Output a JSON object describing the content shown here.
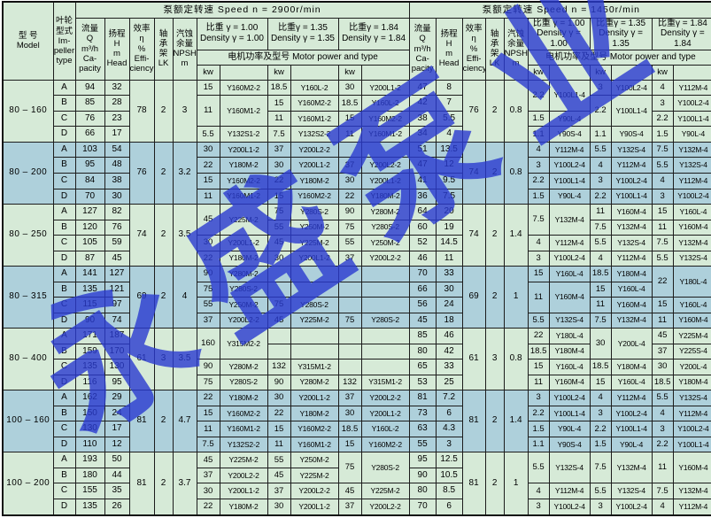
{
  "colors": {
    "block_green": "#d6ead7",
    "block_blue": "#aed0db",
    "watermark_blue": "#2a3bd0"
  },
  "watermark": {
    "text": "永盛泵业"
  },
  "header": {
    "model": "型  号\nModel",
    "impeller": "叶轮\n型式\nIm-\npeller\ntype",
    "speed_2900": "泵额定转速  Speed  n = 2900r/min",
    "speed_1450": "泵额定转速  Speed  n = 1450r/min",
    "flow": "流量\nQ\nm³/h\nCa-\npacity",
    "head": "扬程\nH\nm\nHead",
    "efficiency": "效率\nη\n%\nEffi-\nciency",
    "bearing": "轴\n承\n架\nLK",
    "npsh": "汽蚀\n余量\nNPSH\nm",
    "density_100": "比重 γ = 1.00\nDensity γ = 1.00",
    "density_135": "比重γ = 1.35\nDensity γ = 1.35",
    "density_184": "比重γ = 1.84\nDensity γ = 1.84",
    "motor_power": "电机功率及型号  Motor power and type",
    "kw": "kw"
  },
  "table": {
    "blocks": [
      {
        "model": "80 – 160",
        "tone": "green",
        "s29": {
          "eff": "78",
          "lk": "2",
          "npsh": "3"
        },
        "s14": {
          "eff": "76",
          "lk": "2",
          "npsh": "0.8"
        },
        "rows": [
          {
            "i": "A",
            "q": "94",
            "h": "32",
            "a": [
              "15",
              "Y160M2-2",
              "18.5",
              "Y160L-2",
              "30",
              "Y200L1-2"
            ],
            "q2": "47",
            "h2": "8",
            "b": [
              [
                "2.2",
                2
              ],
              [
                "Y100L1-4",
                2
              ],
              "3",
              "Y100L2-4",
              "4",
              "Y112M-4"
            ]
          },
          {
            "i": "B",
            "q": "85",
            "h": "28",
            "a": [
              [
                "11",
                2
              ],
              [
                "Y160M1-2",
                2
              ],
              "15",
              "Y160M2-2",
              "18.5",
              "Y160L-2"
            ],
            "q2": "42",
            "h2": "7",
            "b": [
              null,
              null,
              [
                "2.2",
                2
              ],
              [
                "Y100L1-4",
                2
              ],
              "3",
              "Y100L2-4"
            ]
          },
          {
            "i": "C",
            "q": "76",
            "h": "23",
            "a": [
              null,
              null,
              "11",
              "Y160M1-2",
              "15",
              "Y160M2-2"
            ],
            "q2": "38",
            "h2": "5.5",
            "b": [
              "1.5",
              "Y90L-4",
              null,
              null,
              "2.2",
              "Y100L1-4"
            ]
          },
          {
            "i": "D",
            "q": "66",
            "h": "17",
            "a": [
              "5.5",
              "Y132S1-2",
              "7.5",
              "Y132S2-2",
              "11",
              "Y160M1-2"
            ],
            "q2": "34",
            "h2": "4",
            "b": [
              "1.1",
              "Y90S-4",
              "1.1",
              "Y90S-4",
              "1.5",
              "Y90L-4"
            ]
          }
        ]
      },
      {
        "model": "80 – 200",
        "tone": "blue",
        "s29": {
          "eff": "76",
          "lk": "2",
          "npsh": "3.2"
        },
        "s14": {
          "eff": "74",
          "lk": "2",
          "npsh": "0.8"
        },
        "rows": [
          {
            "i": "A",
            "q": "103",
            "h": "54",
            "a": [
              "30",
              "Y200L1-2",
              "37",
              "Y200L2-2",
              "",
              ""
            ],
            "q2": "51",
            "h2": "13.5",
            "b": [
              "4",
              "Y112M-4",
              "5.5",
              "Y132S-4",
              "7.5",
              "Y132M-4"
            ]
          },
          {
            "i": "B",
            "q": "95",
            "h": "48",
            "a": [
              "22",
              "Y180M-2",
              "30",
              "Y200L1-2",
              "37",
              "Y200L2-2"
            ],
            "q2": "47",
            "h2": "12",
            "b": [
              "3",
              "Y100L2-4",
              "4",
              "Y112M-4",
              "5.5",
              "Y132S-4"
            ]
          },
          {
            "i": "C",
            "q": "84",
            "h": "38",
            "a": [
              "15",
              "Y160M2-2",
              "22",
              "Y180M-2",
              "30",
              "Y200L1-2"
            ],
            "q2": "41",
            "h2": "9.5",
            "b": [
              "2.2",
              "Y100L1-4",
              "3",
              "Y100L2-4",
              "4",
              "Y112M-4"
            ]
          },
          {
            "i": "D",
            "q": "70",
            "h": "30",
            "a": [
              "11",
              "Y160M1-2",
              "15",
              "Y160M2-2",
              "22",
              "Y180M-2"
            ],
            "q2": "36",
            "h2": "7.5",
            "b": [
              "1.5",
              "Y90L-4",
              "2.2",
              "Y100L1-4",
              "3",
              "Y100L2-4"
            ]
          }
        ]
      },
      {
        "model": "80 – 250",
        "tone": "green",
        "s29": {
          "eff": "74",
          "lk": "2",
          "npsh": "3.5"
        },
        "s14": {
          "eff": "74",
          "lk": "2",
          "npsh": "1.4"
        },
        "rows": [
          {
            "i": "A",
            "q": "127",
            "h": "82",
            "a": [
              [
                "45",
                2
              ],
              [
                "Y225M-2",
                2
              ],
              "75",
              "Y280S-2",
              "90",
              "Y280M-2"
            ],
            "q2": "64",
            "h2": "20",
            "b": [
              [
                "7.5",
                2
              ],
              [
                "Y132M-4",
                2
              ],
              "11",
              "Y160M-4",
              "15",
              "Y160L-4"
            ]
          },
          {
            "i": "B",
            "q": "120",
            "h": "76",
            "a": [
              null,
              null,
              "55",
              "Y250M-2",
              "75",
              "Y280S-2"
            ],
            "q2": "60",
            "h2": "19",
            "b": [
              null,
              null,
              "7.5",
              "Y132M-4",
              "11",
              "Y160M-4"
            ]
          },
          {
            "i": "C",
            "q": "105",
            "h": "59",
            "a": [
              "30",
              "Y200L1-2",
              "45",
              "Y225M-2",
              "55",
              "Y250M-2"
            ],
            "q2": "52",
            "h2": "14.5",
            "b": [
              "4",
              "Y112M-4",
              "5.5",
              "Y132S-4",
              "7.5",
              "Y132M-4"
            ]
          },
          {
            "i": "D",
            "q": "87",
            "h": "45",
            "a": [
              "22",
              "Y180M-2",
              "30",
              "Y200L1-2",
              "37",
              "Y200L2-2"
            ],
            "q2": "46",
            "h2": "11",
            "b": [
              "3",
              "Y100L2-4",
              "4",
              "Y112M-4",
              "5.5",
              "Y132S-4"
            ]
          }
        ]
      },
      {
        "model": "80 – 315",
        "tone": "blue",
        "s29": {
          "eff": "69",
          "lk": "2",
          "npsh": "4"
        },
        "s14": {
          "eff": "69",
          "lk": "2",
          "npsh": "1"
        },
        "rows": [
          {
            "i": "A",
            "q": "141",
            "h": "127",
            "a": [
              "90",
              "Y280M-2",
              "",
              "",
              "",
              ""
            ],
            "q2": "70",
            "h2": "33",
            "b": [
              "15",
              "Y160L-4",
              "18.5",
              "Y180M-4",
              [
                "22",
                2
              ],
              [
                "Y180L-4",
                2
              ]
            ]
          },
          {
            "i": "B",
            "q": "135",
            "h": "121",
            "a": [
              "75",
              "Y280S-2",
              "",
              "",
              "",
              ""
            ],
            "q2": "66",
            "h2": "30",
            "b": [
              [
                "11",
                2
              ],
              [
                "Y160M-4",
                2
              ],
              "15",
              "Y160L-4",
              null,
              null
            ]
          },
          {
            "i": "C",
            "q": "115",
            "h": "97",
            "a": [
              "55",
              "Y250M-2",
              "75",
              "Y280S-2",
              "",
              ""
            ],
            "q2": "56",
            "h2": "24",
            "b": [
              null,
              null,
              "11",
              "Y160M-4",
              "15",
              "Y160L-4"
            ]
          },
          {
            "i": "D",
            "q": "90",
            "h": "74",
            "a": [
              "37",
              "Y200L2-2",
              "45",
              "Y225M-2",
              "75",
              "Y280S-2"
            ],
            "q2": "45",
            "h2": "18",
            "b": [
              "5.5",
              "Y132S-4",
              "7.5",
              "Y132M-4",
              "11",
              "Y160M-4"
            ]
          }
        ]
      },
      {
        "model": "80 – 400",
        "tone": "green",
        "s29": {
          "eff": "61",
          "lk": "3",
          "npsh": "3.5"
        },
        "s14": {
          "eff": "61",
          "lk": "3",
          "npsh": "0.8"
        },
        "rows": [
          {
            "i": "A",
            "q": "171",
            "h": "187",
            "a": [
              [
                "160",
                2
              ],
              [
                "Y315M2-2",
                2
              ],
              "",
              "",
              "",
              ""
            ],
            "q2": "85",
            "h2": "46",
            "b": [
              "22",
              "Y180L-4",
              [
                "30",
                2
              ],
              [
                "Y200L-4",
                2
              ],
              "45",
              "Y225M-4"
            ]
          },
          {
            "i": "B",
            "q": "159",
            "h": "170",
            "a": [
              null,
              null,
              "",
              "",
              "",
              ""
            ],
            "q2": "80",
            "h2": "42",
            "b": [
              "18.5",
              "Y180M-4",
              null,
              null,
              "37",
              "Y225S-4"
            ]
          },
          {
            "i": "C",
            "q": "135",
            "h": "130",
            "a": [
              "90",
              "Y280M-2",
              "132",
              "Y315M1-2",
              "",
              ""
            ],
            "q2": "65",
            "h2": "33",
            "b": [
              "15",
              "Y160L-4",
              "18.5",
              "Y180M-4",
              "30",
              "Y200L-4"
            ]
          },
          {
            "i": "D",
            "q": "116",
            "h": "95",
            "a": [
              "75",
              "Y280S-2",
              "90",
              "Y280M-2",
              "132",
              "Y315M1-2"
            ],
            "q2": "53",
            "h2": "25",
            "b": [
              "11",
              "Y160M-4",
              "15",
              "Y160L-4",
              "18.5",
              "Y180M-4"
            ]
          }
        ]
      },
      {
        "model": "100 – 160",
        "tone": "blue",
        "s29": {
          "eff": "81",
          "lk": "2",
          "npsh": "4.7"
        },
        "s14": {
          "eff": "81",
          "lk": "2",
          "npsh": "1.4"
        },
        "rows": [
          {
            "i": "A",
            "q": "162",
            "h": "29",
            "a": [
              "22",
              "Y180M-2",
              "30",
              "Y200L1-2",
              "37",
              "Y200L2-2"
            ],
            "q2": "81",
            "h2": "7.2",
            "b": [
              "3",
              "Y100L2-4",
              "4",
              "Y112M-4",
              "5.5",
              "Y132S-4"
            ]
          },
          {
            "i": "B",
            "q": "150",
            "h": "24",
            "a": [
              "15",
              "Y160M2-2",
              "22",
              "Y180M-2",
              "30",
              "Y200L1-2"
            ],
            "q2": "73",
            "h2": "6",
            "b": [
              "2.2",
              "Y100L1-4",
              "3",
              "Y100L2-4",
              "4",
              "Y112M-4"
            ]
          },
          {
            "i": "C",
            "q": "130",
            "h": "17",
            "a": [
              "11",
              "Y160M1-2",
              "15",
              "Y160M2-2",
              "18.5",
              "Y160L-2"
            ],
            "q2": "63",
            "h2": "4.3",
            "b": [
              "1.5",
              "Y90L-4",
              "2.2",
              "Y100L1-4",
              "3",
              "Y100L2-4"
            ]
          },
          {
            "i": "D",
            "q": "110",
            "h": "12",
            "a": [
              "7.5",
              "Y132S2-2",
              "11",
              "Y160M1-2",
              "15",
              "Y160M2-2"
            ],
            "q2": "55",
            "h2": "3",
            "b": [
              "1.1",
              "Y90S-4",
              "1.5",
              "Y90L-4",
              "2.2",
              "Y100L1-4"
            ]
          }
        ]
      },
      {
        "model": "100 – 200",
        "tone": "green",
        "s29": {
          "eff": "81",
          "lk": "2",
          "npsh": "3.7"
        },
        "s14": {
          "eff": "81",
          "lk": "2",
          "npsh": "1"
        },
        "rows": [
          {
            "i": "A",
            "q": "193",
            "h": "50",
            "a": [
              "45",
              "Y225M-2",
              "55",
              "Y250M-2",
              [
                "75",
                2
              ],
              [
                "Y280S-2",
                2
              ]
            ],
            "q2": "95",
            "h2": "12.5",
            "b": [
              [
                "5.5",
                2
              ],
              [
                "Y132S-4",
                2
              ],
              [
                "7.5",
                2
              ],
              [
                "Y132M-4",
                2
              ],
              [
                "11",
                2
              ],
              [
                "Y160M-4",
                2
              ]
            ]
          },
          {
            "i": "B",
            "q": "180",
            "h": "44",
            "a": [
              "37",
              "Y200L2-2",
              "45",
              "Y225M-2",
              null,
              null
            ],
            "q2": "90",
            "h2": "10.5",
            "b": [
              null,
              null,
              null,
              null,
              null,
              null
            ]
          },
          {
            "i": "C",
            "q": "155",
            "h": "35",
            "a": [
              "30",
              "Y200L1-2",
              "37",
              "Y200L2-2",
              "45",
              "Y225M-2"
            ],
            "q2": "80",
            "h2": "8.5",
            "b": [
              "4",
              "Y112M-4",
              "5.5",
              "Y132S-4",
              "7.5",
              "Y132M-4"
            ]
          },
          {
            "i": "D",
            "q": "135",
            "h": "26",
            "a": [
              "22",
              "Y180M-2",
              "30",
              "Y200L1-2",
              "37",
              "Y200L2-2"
            ],
            "q2": "70",
            "h2": "6",
            "b": [
              "3",
              "Y100L2-4",
              "3",
              "Y100L2-4",
              "4",
              "Y112M-4"
            ]
          }
        ]
      }
    ]
  }
}
